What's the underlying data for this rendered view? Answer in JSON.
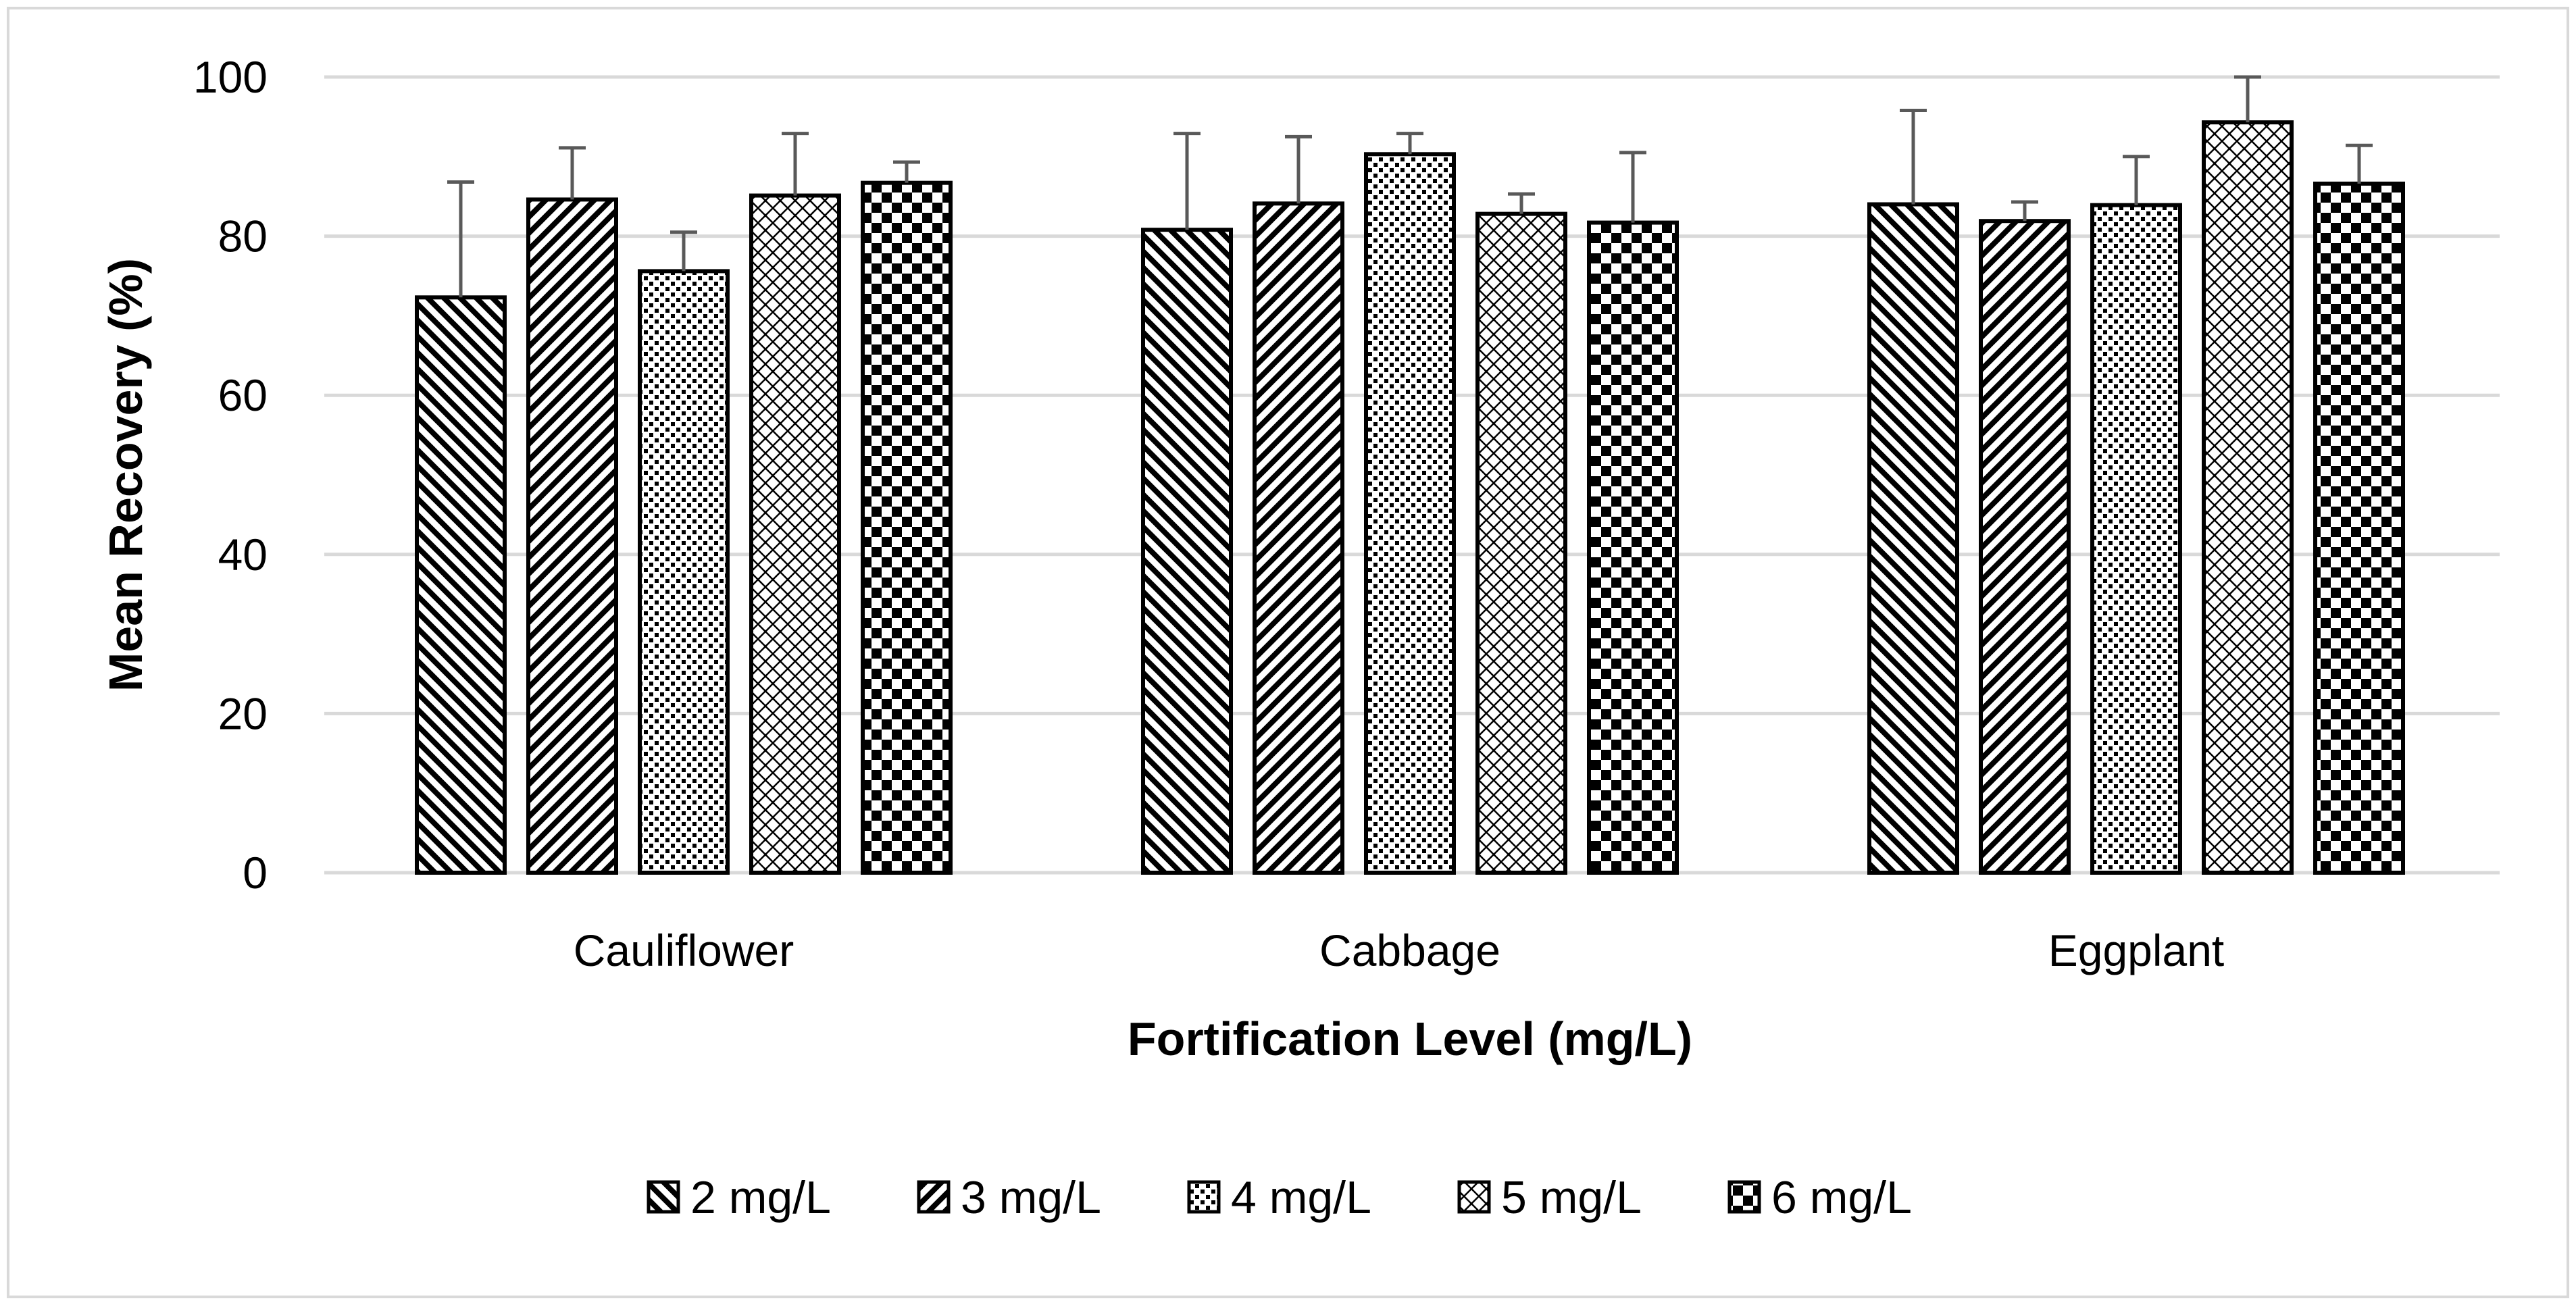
{
  "chart_data": {
    "type": "bar",
    "title": "",
    "xlabel": "Fortification Level (mg/L)",
    "ylabel": "Mean Recovery (%)",
    "ylim": [
      0,
      100
    ],
    "yticks": [
      0,
      20,
      40,
      60,
      80,
      100
    ],
    "grid": true,
    "legend_position": "bottom",
    "categories": [
      "Cauliflower",
      "Cabbage",
      "Eggplant"
    ],
    "series": [
      {
        "name": "2 mg/L",
        "pattern": "diag-back",
        "values": [
          72.3,
          80.8,
          84.0
        ],
        "error": [
          14.5,
          12.1,
          11.8
        ]
      },
      {
        "name": "3 mg/L",
        "pattern": "diag-forward",
        "values": [
          84.6,
          84.1,
          81.9
        ],
        "error": [
          6.5,
          8.4,
          2.4
        ]
      },
      {
        "name": "4 mg/L",
        "pattern": "dots",
        "values": [
          75.6,
          90.3,
          83.9
        ],
        "error": [
          4.9,
          2.6,
          6.1
        ]
      },
      {
        "name": "5 mg/L",
        "pattern": "crosshatch",
        "values": [
          85.1,
          82.8,
          94.3
        ],
        "error": [
          7.8,
          2.5,
          5.7
        ]
      },
      {
        "name": "6 mg/L",
        "pattern": "checker",
        "values": [
          86.7,
          81.7,
          86.6
        ],
        "error": [
          2.6,
          8.8,
          4.8
        ]
      }
    ]
  },
  "colors": {
    "bar_stroke": "#000000",
    "error_bar": "#595959",
    "grid": "#d9d9d9",
    "frame": "#d9d9d9"
  }
}
